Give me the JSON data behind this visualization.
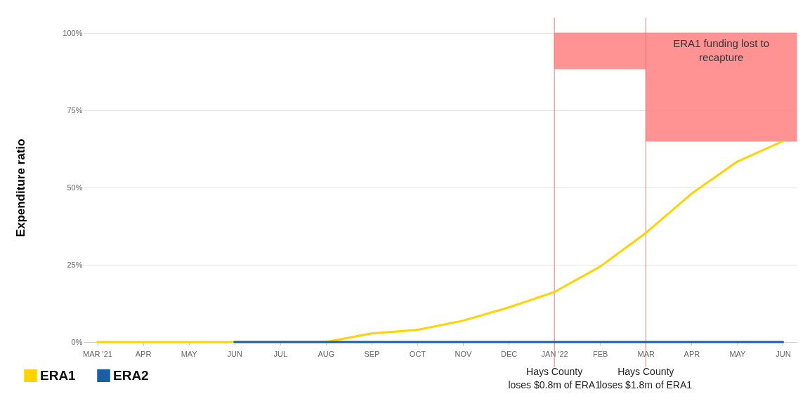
{
  "chart_data": {
    "type": "line",
    "ylabel": "Expenditure ratio",
    "categories": [
      "MAR '21",
      "APR",
      "MAY",
      "JUN",
      "JUL",
      "AUG",
      "SEP",
      "OCT",
      "NOV",
      "DEC",
      "JAN '22",
      "FEB",
      "MAR",
      "APR",
      "MAY",
      "JUN"
    ],
    "series": [
      {
        "name": "ERA1",
        "color": "#ffd200",
        "values": [
          0,
          0,
          0,
          0,
          0,
          0,
          2.8,
          3.9,
          6.9,
          11.2,
          16.2,
          24.4,
          35.3,
          48,
          58.4,
          65
        ]
      },
      {
        "name": "ERA2",
        "color": "#1a5ea6",
        "values": [
          null,
          null,
          null,
          0,
          0,
          0,
          0,
          0,
          0,
          0,
          0,
          0,
          0,
          0,
          0,
          0
        ]
      }
    ],
    "ylim": [
      0,
      100
    ],
    "yticks": [
      {
        "value": 0,
        "label": "0%"
      },
      {
        "value": 25,
        "label": "25%"
      },
      {
        "value": 50,
        "label": "50%"
      },
      {
        "value": 75,
        "label": "75%"
      },
      {
        "value": 100,
        "label": "100%"
      }
    ],
    "grid": "y",
    "legend": "bottom left",
    "marker": "none",
    "line_style": "solid",
    "ref_lines": [
      {
        "axis": "x",
        "value": "JAN '22",
        "label": "Hays County\nloses $0.8m of ERA1",
        "color": "#ff7070"
      },
      {
        "axis": "x",
        "value": "MAR",
        "label": "Hays County\nloses $1.8m of ERA1",
        "color": "#ff7070"
      }
    ],
    "bands": [
      {
        "axis": "y",
        "from": 88.4,
        "to": 100,
        "color": "#ff8080"
      },
      {
        "axis": "y",
        "from": 65,
        "to": 100,
        "label": "ERA1 funding lost to\nrecapture",
        "color": "#ff8080"
      }
    ]
  }
}
